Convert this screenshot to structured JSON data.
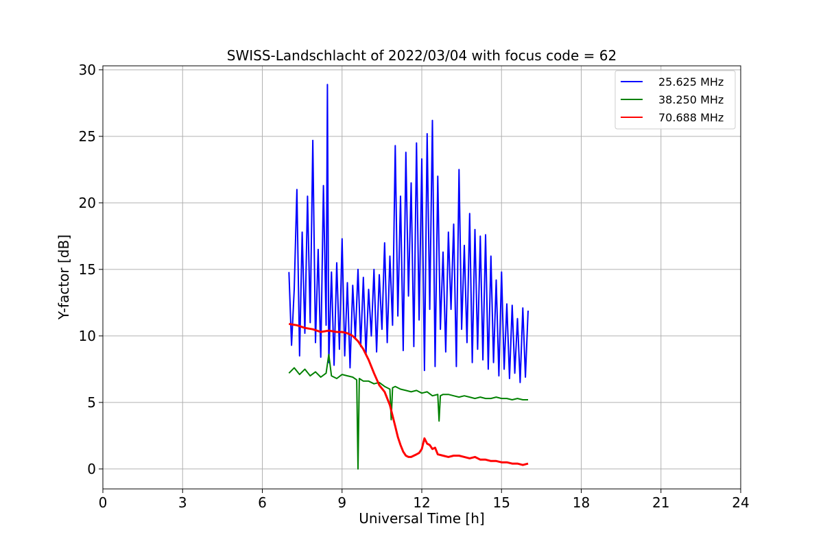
{
  "chart_data": {
    "type": "line",
    "title": "SWISS-Landschlacht of 2022/03/04 with focus code = 62",
    "xlabel": "Universal Time [h]",
    "ylabel": "Y-factor [dB]",
    "xlim": [
      0,
      24
    ],
    "ylim": [
      -1.5,
      30.3
    ],
    "xticks": [
      0,
      3,
      6,
      9,
      12,
      15,
      18,
      21,
      24
    ],
    "xtick_labels": [
      "0",
      "3",
      "6",
      "9",
      "12",
      "15",
      "18",
      "21",
      "24"
    ],
    "yticks": [
      0,
      5,
      10,
      15,
      20,
      25,
      30
    ],
    "ytick_labels": [
      "0",
      "5",
      "10",
      "15",
      "20",
      "25",
      "30"
    ],
    "grid": true,
    "legend_position": "top-right",
    "series": [
      {
        "name": "25.625 MHz",
        "color": "#0000ff",
        "x": [
          7.0,
          7.1,
          7.2,
          7.3,
          7.4,
          7.5,
          7.6,
          7.7,
          7.8,
          7.9,
          8.0,
          8.1,
          8.2,
          8.3,
          8.4,
          8.45,
          8.5,
          8.6,
          8.7,
          8.8,
          8.9,
          9.0,
          9.1,
          9.2,
          9.3,
          9.4,
          9.5,
          9.6,
          9.7,
          9.8,
          9.9,
          10.0,
          10.1,
          10.2,
          10.3,
          10.4,
          10.5,
          10.6,
          10.7,
          10.8,
          10.9,
          11.0,
          11.1,
          11.2,
          11.3,
          11.4,
          11.5,
          11.6,
          11.7,
          11.8,
          11.9,
          12.0,
          12.1,
          12.2,
          12.3,
          12.4,
          12.5,
          12.6,
          12.7,
          12.8,
          12.9,
          13.0,
          13.1,
          13.2,
          13.3,
          13.4,
          13.5,
          13.6,
          13.7,
          13.8,
          13.9,
          14.0,
          14.1,
          14.2,
          14.3,
          14.4,
          14.5,
          14.6,
          14.7,
          14.8,
          14.9,
          15.0,
          15.1,
          15.2,
          15.3,
          15.4,
          15.5,
          15.6,
          15.7,
          15.8,
          15.9,
          16.0
        ],
        "y": [
          14.8,
          9.3,
          13.5,
          21.0,
          8.5,
          17.8,
          10.2,
          20.5,
          11.0,
          24.7,
          9.5,
          16.5,
          8.4,
          21.3,
          10.8,
          28.9,
          8.0,
          14.8,
          7.8,
          15.5,
          9.0,
          17.3,
          8.5,
          14.0,
          7.6,
          13.8,
          9.8,
          15.0,
          9.2,
          14.4,
          8.6,
          13.5,
          10.0,
          15.0,
          8.8,
          14.6,
          10.5,
          17.0,
          9.5,
          16.0,
          10.8,
          24.3,
          11.5,
          20.5,
          8.9,
          23.8,
          13.0,
          21.5,
          9.2,
          24.5,
          11.2,
          23.3,
          7.4,
          25.2,
          12.0,
          26.2,
          7.7,
          22.0,
          10.5,
          16.3,
          8.8,
          17.8,
          12.0,
          18.4,
          7.7,
          22.5,
          10.5,
          16.8,
          9.5,
          19.2,
          8.0,
          18.0,
          9.0,
          17.5,
          8.2,
          17.6,
          7.5,
          16.0,
          8.0,
          14.2,
          7.0,
          14.8,
          7.5,
          12.4,
          6.8,
          12.3,
          7.2,
          11.3,
          6.5,
          12.1,
          6.9,
          11.9
        ]
      },
      {
        "name": "38.250 MHz",
        "color": "#008000",
        "x": [
          7.0,
          7.2,
          7.4,
          7.6,
          7.8,
          8.0,
          8.2,
          8.4,
          8.5,
          8.6,
          8.8,
          9.0,
          9.2,
          9.4,
          9.55,
          9.6,
          9.65,
          9.8,
          10.0,
          10.2,
          10.4,
          10.6,
          10.8,
          10.85,
          10.9,
          11.0,
          11.2,
          11.4,
          11.6,
          11.8,
          12.0,
          12.2,
          12.4,
          12.6,
          12.65,
          12.7,
          12.8,
          13.0,
          13.2,
          13.4,
          13.6,
          13.8,
          14.0,
          14.2,
          14.4,
          14.6,
          14.8,
          15.0,
          15.2,
          15.4,
          15.6,
          15.8,
          16.0
        ],
        "y": [
          7.2,
          7.6,
          7.1,
          7.5,
          7.0,
          7.3,
          6.9,
          7.2,
          8.6,
          7.0,
          6.8,
          7.1,
          7.0,
          6.9,
          6.7,
          0.0,
          6.8,
          6.6,
          6.6,
          6.4,
          6.5,
          6.2,
          6.0,
          3.7,
          6.1,
          6.2,
          6.0,
          5.9,
          5.8,
          5.9,
          5.7,
          5.8,
          5.5,
          5.6,
          3.6,
          5.5,
          5.6,
          5.6,
          5.5,
          5.4,
          5.5,
          5.4,
          5.3,
          5.4,
          5.3,
          5.3,
          5.4,
          5.3,
          5.3,
          5.2,
          5.3,
          5.2,
          5.2
        ]
      },
      {
        "name": "70.688 MHz",
        "color": "#ff0000",
        "x": [
          7.0,
          7.3,
          7.6,
          7.9,
          8.2,
          8.5,
          8.8,
          9.0,
          9.2,
          9.4,
          9.6,
          9.8,
          10.0,
          10.2,
          10.4,
          10.6,
          10.8,
          10.9,
          11.0,
          11.1,
          11.2,
          11.3,
          11.4,
          11.5,
          11.6,
          11.7,
          11.8,
          11.9,
          12.0,
          12.1,
          12.2,
          12.3,
          12.4,
          12.5,
          12.6,
          12.8,
          13.0,
          13.2,
          13.4,
          13.6,
          13.8,
          14.0,
          14.2,
          14.4,
          14.6,
          14.8,
          15.0,
          15.2,
          15.4,
          15.6,
          15.8,
          16.0
        ],
        "y": [
          10.9,
          10.8,
          10.6,
          10.5,
          10.3,
          10.4,
          10.3,
          10.3,
          10.2,
          10.0,
          9.6,
          9.0,
          8.2,
          7.2,
          6.3,
          5.8,
          4.8,
          4.0,
          3.2,
          2.4,
          1.8,
          1.3,
          1.0,
          0.9,
          0.9,
          1.0,
          1.1,
          1.2,
          1.5,
          2.3,
          1.9,
          1.8,
          1.5,
          1.6,
          1.1,
          1.0,
          0.9,
          1.0,
          1.0,
          0.9,
          0.8,
          0.9,
          0.7,
          0.7,
          0.6,
          0.6,
          0.5,
          0.5,
          0.4,
          0.4,
          0.3,
          0.4
        ]
      }
    ]
  }
}
